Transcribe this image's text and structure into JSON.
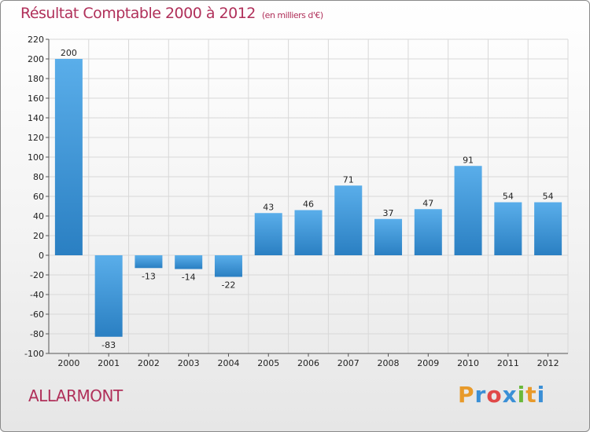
{
  "header": {
    "title": "Résultat Comptable 2000 à 2012",
    "unit": "(en milliers d'€)"
  },
  "footer": {
    "place": "ALLARMONT",
    "brand": "Proxiti"
  },
  "colors": {
    "title": "#b0305a",
    "bar_light": "#5aaeea",
    "bar_dark": "#2a7fc2",
    "brand_letters": [
      "#e89a2a",
      "#3a8fd6",
      "#e04848",
      "#3a8fd6",
      "#6ab83a",
      "#e89a2a",
      "#3a8fd6"
    ]
  },
  "chart_data": {
    "type": "bar",
    "title": "Résultat Comptable 2000 à 2012",
    "xlabel": "",
    "ylabel": "",
    "categories": [
      "2000",
      "2001",
      "2002",
      "2003",
      "2004",
      "2005",
      "2006",
      "2007",
      "2008",
      "2009",
      "2010",
      "2011",
      "2012"
    ],
    "values": [
      200,
      -83,
      -13,
      -14,
      -22,
      43,
      46,
      71,
      37,
      47,
      91,
      54,
      54
    ],
    "value_labels": [
      "200",
      "-83",
      "-13",
      "-14",
      "-22",
      "43",
      "46",
      "71",
      "37",
      "47",
      "91",
      "54",
      "54"
    ],
    "ylim": [
      -100,
      220
    ],
    "yticks": [
      -100,
      -80,
      -60,
      -40,
      -20,
      0,
      20,
      40,
      60,
      80,
      100,
      120,
      140,
      160,
      180,
      200,
      220
    ],
    "ytick_labels": [
      "-100",
      "-80",
      "-60",
      "-40",
      "-20",
      "0",
      "20",
      "40",
      "60",
      "80",
      "100",
      "120",
      "140",
      "160",
      "180",
      "200",
      "220"
    ],
    "grid": true
  }
}
